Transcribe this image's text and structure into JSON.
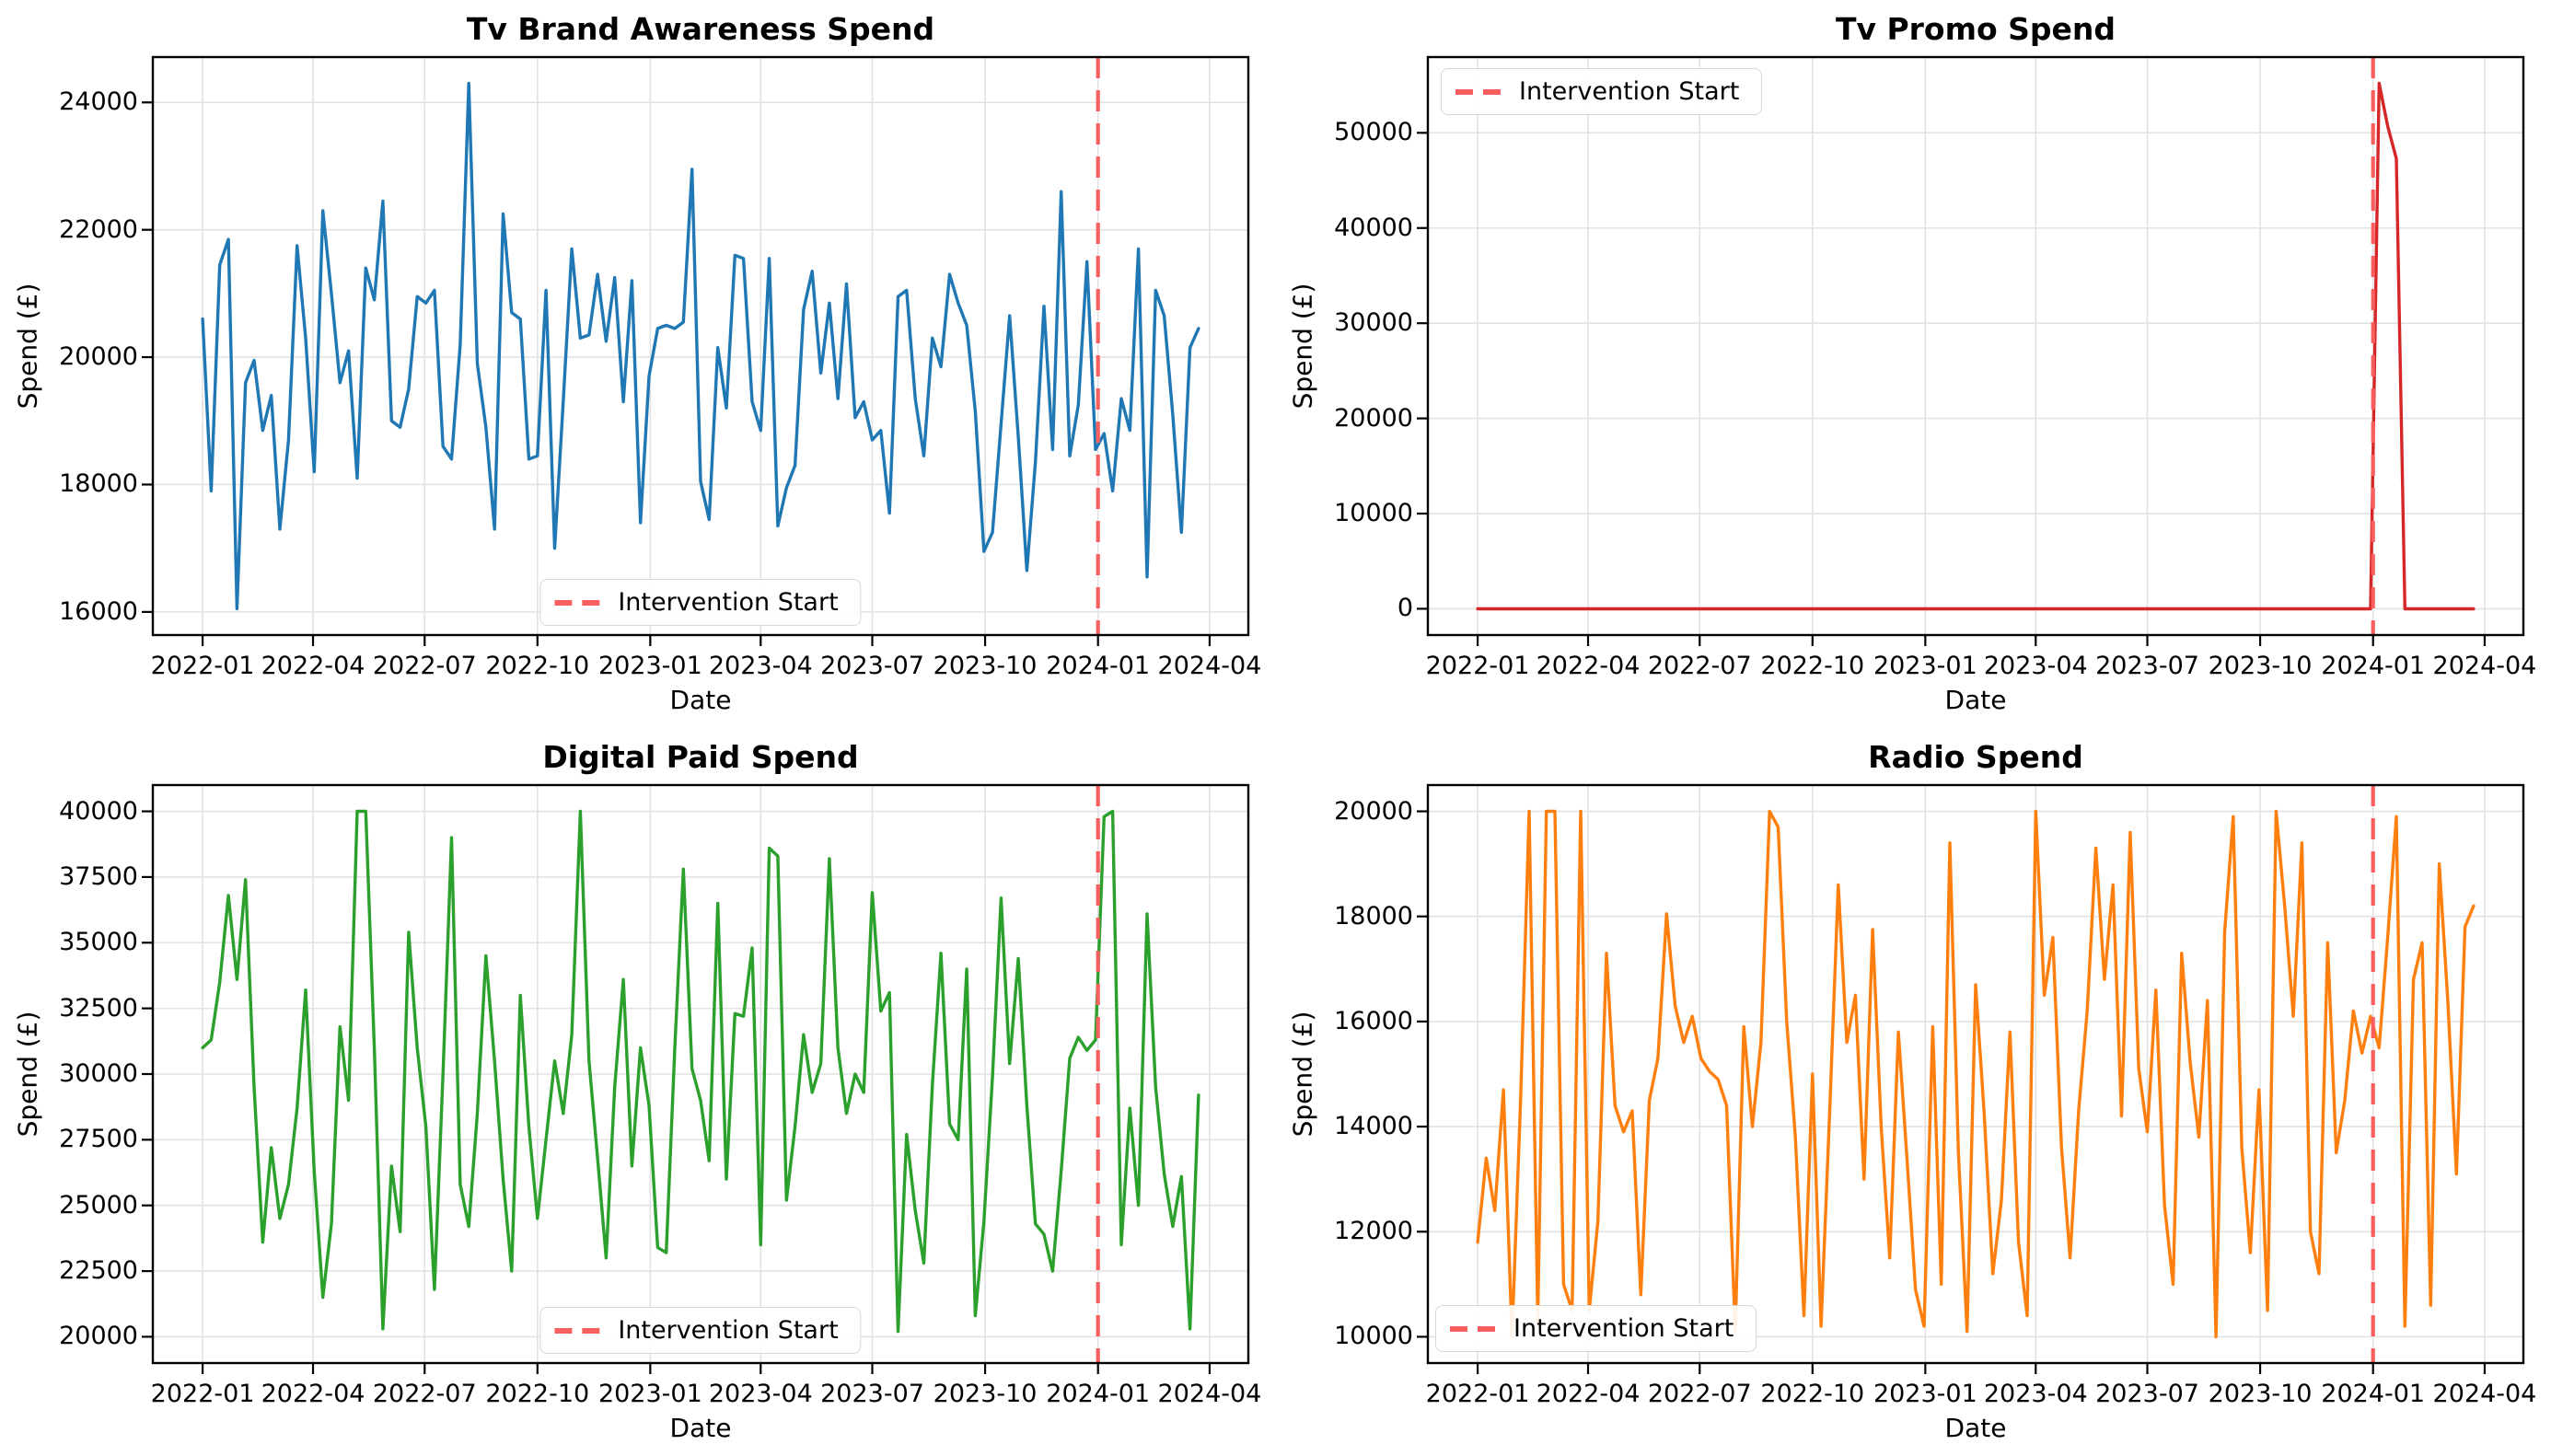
{
  "figure": {
    "background": "#ffffff",
    "xlabel": "Date",
    "ylabel": "Spend (£)",
    "intervention_label": "Intervention Start",
    "intervention_week": 104.29,
    "intervention_color": "#f95f5f",
    "grid_color": "#e2e2e2",
    "spine_color": "#000000",
    "xlim_weeks": [
      -5.8,
      121.8
    ],
    "x_ticks": [
      {
        "label": "2022-01",
        "week": 0
      },
      {
        "label": "2022-04",
        "week": 12.86
      },
      {
        "label": "2022-07",
        "week": 25.86
      },
      {
        "label": "2022-10",
        "week": 39.0
      },
      {
        "label": "2023-01",
        "week": 52.14
      },
      {
        "label": "2023-04",
        "week": 65.0
      },
      {
        "label": "2023-07",
        "week": 78.0
      },
      {
        "label": "2023-10",
        "week": 91.14
      },
      {
        "label": "2024-01",
        "week": 104.29
      },
      {
        "label": "2024-04",
        "week": 117.29
      }
    ]
  },
  "chart_data": [
    {
      "type": "line",
      "title": "Tv Brand Awareness Spend",
      "xlabel": "Date",
      "ylabel": "Spend (£)",
      "color": "#1f77b4",
      "legend_pos": "lower-center",
      "legend_entry": "Intervention Start",
      "x_start": "2022-01-01",
      "x_frequency": "weekly",
      "ylim": [
        15637,
        24712
      ],
      "yticks": [
        16000,
        18000,
        20000,
        22000,
        24000
      ],
      "ytick_labels": [
        "16000",
        "18000",
        "20000",
        "22000",
        "24000"
      ],
      "grid": true,
      "values": [
        20600,
        17900,
        21450,
        21850,
        16050,
        19600,
        19950,
        18850,
        19400,
        17300,
        18700,
        21750,
        20300,
        18200,
        22300,
        21000,
        19600,
        20100,
        18100,
        21400,
        20900,
        22450,
        19000,
        18900,
        19500,
        20950,
        20850,
        21050,
        18600,
        18400,
        20200,
        24300,
        19900,
        18900,
        17300,
        22250,
        20700,
        20600,
        18400,
        18450,
        21050,
        17000,
        19300,
        21700,
        20300,
        20350,
        21300,
        20250,
        21250,
        19300,
        21200,
        17400,
        19700,
        20450,
        20500,
        20450,
        20550,
        22950,
        18050,
        17450,
        20150,
        19200,
        21600,
        21550,
        19300,
        18850,
        21550,
        17350,
        17950,
        18300,
        20750,
        21350,
        19750,
        20850,
        19350,
        21150,
        19050,
        19300,
        18700,
        18850,
        17550,
        20950,
        21050,
        19350,
        18450,
        20300,
        19850,
        21300,
        20850,
        20500,
        19150,
        16950,
        17250,
        18950,
        20650,
        18750,
        16650,
        18350,
        20800,
        18550,
        22600,
        18450,
        19250,
        21500,
        18550,
        18800,
        17900,
        19350,
        18850,
        21700,
        16550,
        21050,
        20650,
        19100,
        17250,
        20150,
        20450
      ]
    },
    {
      "type": "line",
      "title": "Tv Promo Spend",
      "xlabel": "Date",
      "ylabel": "Spend (£)",
      "color": "#d62728",
      "legend_pos": "upper-left",
      "legend_entry": "Intervention Start",
      "x_start": "2022-01-01",
      "x_frequency": "weekly",
      "ylim": [
        -2760,
        57960
      ],
      "yticks": [
        0,
        10000,
        20000,
        30000,
        40000,
        50000
      ],
      "ytick_labels": [
        "0",
        "10000",
        "20000",
        "30000",
        "40000",
        "50000"
      ],
      "grid": true,
      "values": [
        0,
        0,
        0,
        0,
        0,
        0,
        0,
        0,
        0,
        0,
        0,
        0,
        0,
        0,
        0,
        0,
        0,
        0,
        0,
        0,
        0,
        0,
        0,
        0,
        0,
        0,
        0,
        0,
        0,
        0,
        0,
        0,
        0,
        0,
        0,
        0,
        0,
        0,
        0,
        0,
        0,
        0,
        0,
        0,
        0,
        0,
        0,
        0,
        0,
        0,
        0,
        0,
        0,
        0,
        0,
        0,
        0,
        0,
        0,
        0,
        0,
        0,
        0,
        0,
        0,
        0,
        0,
        0,
        0,
        0,
        0,
        0,
        0,
        0,
        0,
        0,
        0,
        0,
        0,
        0,
        0,
        0,
        0,
        0,
        0,
        0,
        0,
        0,
        0,
        0,
        0,
        0,
        0,
        0,
        0,
        0,
        0,
        0,
        0,
        0,
        0,
        0,
        0,
        0,
        0,
        55200,
        50700,
        47300,
        0,
        0,
        0,
        0,
        0,
        0,
        0,
        0,
        0
      ]
    },
    {
      "type": "line",
      "title": "Digital Paid Spend",
      "xlabel": "Date",
      "ylabel": "Spend (£)",
      "color": "#2ca02c",
      "legend_pos": "lower-center",
      "legend_entry": "Intervention Start",
      "x_start": "2022-01-01",
      "x_frequency": "weekly",
      "ylim": [
        19000,
        41000
      ],
      "yticks": [
        20000,
        22500,
        25000,
        27500,
        30000,
        32500,
        35000,
        37500,
        40000
      ],
      "ytick_labels": [
        "20000",
        "22500",
        "25000",
        "27500",
        "30000",
        "32500",
        "35000",
        "37500",
        "40000"
      ],
      "grid": true,
      "values": [
        31000,
        31300,
        33500,
        36800,
        33600,
        37400,
        29500,
        23600,
        27200,
        24500,
        25800,
        28700,
        33200,
        26300,
        21500,
        24300,
        31800,
        29000,
        40000,
        40000,
        31000,
        20300,
        26500,
        24000,
        35400,
        31000,
        28000,
        21800,
        30000,
        39000,
        25800,
        24200,
        28500,
        34500,
        30500,
        26000,
        22500,
        33000,
        28000,
        24500,
        27500,
        30500,
        28500,
        31500,
        40000,
        30500,
        26800,
        23000,
        29500,
        33600,
        26500,
        31000,
        28800,
        23400,
        23200,
        31000,
        37800,
        30200,
        29000,
        26700,
        36500,
        26000,
        32300,
        32200,
        34800,
        23500,
        38600,
        38300,
        25200,
        28000,
        31500,
        29300,
        30400,
        38200,
        31000,
        28500,
        30000,
        29300,
        36900,
        32400,
        33100,
        20200,
        27700,
        24800,
        22800,
        29600,
        34600,
        28100,
        27500,
        34000,
        20800,
        24400,
        29900,
        36700,
        30400,
        34400,
        28800,
        24300,
        23900,
        22500,
        26300,
        30600,
        31400,
        30900,
        31300,
        39800,
        40000,
        23500,
        28700,
        25000,
        36100,
        29500,
        26200,
        24200,
        26100,
        20300,
        29200
      ]
    },
    {
      "type": "line",
      "title": "Radio Spend",
      "xlabel": "Date",
      "ylabel": "Spend (£)",
      "color": "#ff7f0e",
      "legend_pos": "lower-left",
      "legend_entry": "Intervention Start",
      "x_start": "2022-01-01",
      "x_frequency": "weekly",
      "ylim": [
        9500,
        20500
      ],
      "yticks": [
        10000,
        12000,
        14000,
        16000,
        18000,
        20000
      ],
      "ytick_labels": [
        "10000",
        "12000",
        "14000",
        "16000",
        "18000",
        "20000"
      ],
      "grid": true,
      "values": [
        11800,
        13400,
        12400,
        14700,
        10000,
        14500,
        20000,
        10300,
        20000,
        20000,
        11000,
        10500,
        20000,
        10500,
        12200,
        17300,
        14400,
        13900,
        14300,
        10800,
        14500,
        15300,
        18050,
        16300,
        15600,
        16100,
        15300,
        15050,
        14900,
        14400,
        10100,
        15900,
        14000,
        15600,
        20000,
        19700,
        16000,
        13800,
        10400,
        15000,
        10200,
        14300,
        18600,
        15600,
        16500,
        13000,
        17750,
        14000,
        11500,
        15800,
        13400,
        10900,
        10200,
        15900,
        11000,
        19400,
        13500,
        10100,
        16700,
        14250,
        11200,
        12600,
        15800,
        11800,
        10400,
        20000,
        16500,
        17600,
        13600,
        11500,
        14300,
        16200,
        19300,
        16800,
        18600,
        14200,
        19600,
        15100,
        13900,
        16600,
        12500,
        11000,
        17300,
        15200,
        13800,
        16400,
        10000,
        17700,
        19900,
        13600,
        11600,
        14700,
        10500,
        20000,
        18200,
        16100,
        19400,
        12000,
        11200,
        17500,
        13500,
        14500,
        16200,
        15400,
        16100,
        15500,
        17600,
        19900,
        10200,
        16800,
        17500,
        10600,
        19000,
        16400,
        13100,
        17800,
        18200
      ]
    }
  ]
}
